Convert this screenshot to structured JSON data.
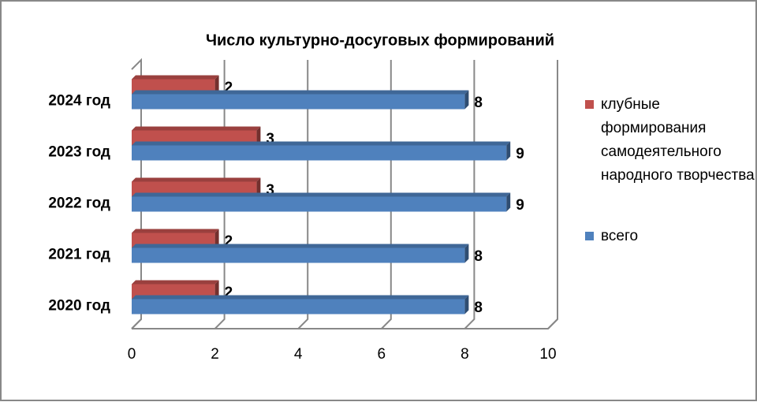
{
  "chart_data": {
    "type": "bar",
    "orientation": "horizontal",
    "title": "Число культурно-досуговых формирований",
    "categories": [
      "2020 год",
      "2021 год",
      "2022 год",
      "2023 год",
      "2024 год"
    ],
    "series": [
      {
        "name": "клубные формирования самодеятельного народного творчества",
        "color": "#c0504d",
        "values": [
          2,
          2,
          3,
          3,
          2
        ]
      },
      {
        "name": "всего",
        "color": "#4f81bd",
        "values": [
          8,
          8,
          9,
          9,
          8
        ]
      }
    ],
    "xlim": [
      0,
      10
    ],
    "xticks": [
      0,
      2,
      4,
      6,
      8,
      10
    ],
    "grid": true,
    "legend": "right"
  }
}
